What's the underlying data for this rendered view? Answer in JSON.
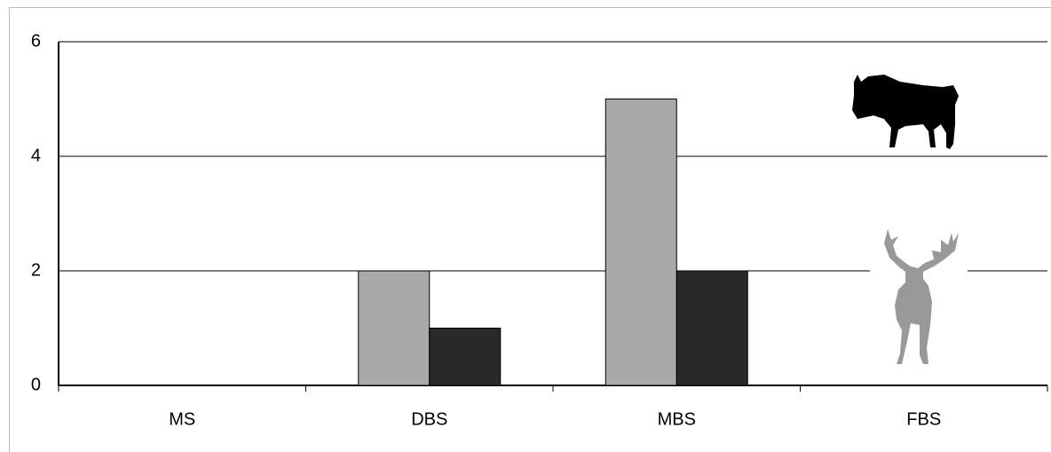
{
  "chart_data": {
    "type": "bar",
    "categories": [
      "MS",
      "DBS",
      "MBS",
      "FBS"
    ],
    "series": [
      {
        "color": "#a9a9a9",
        "values": [
          0,
          2,
          5,
          0
        ]
      },
      {
        "color": "#282a28",
        "values": [
          0,
          1,
          2,
          0
        ]
      }
    ],
    "ylim": [
      0,
      6
    ],
    "yticks": [
      0,
      2,
      4,
      6
    ],
    "grid": true
  }
}
